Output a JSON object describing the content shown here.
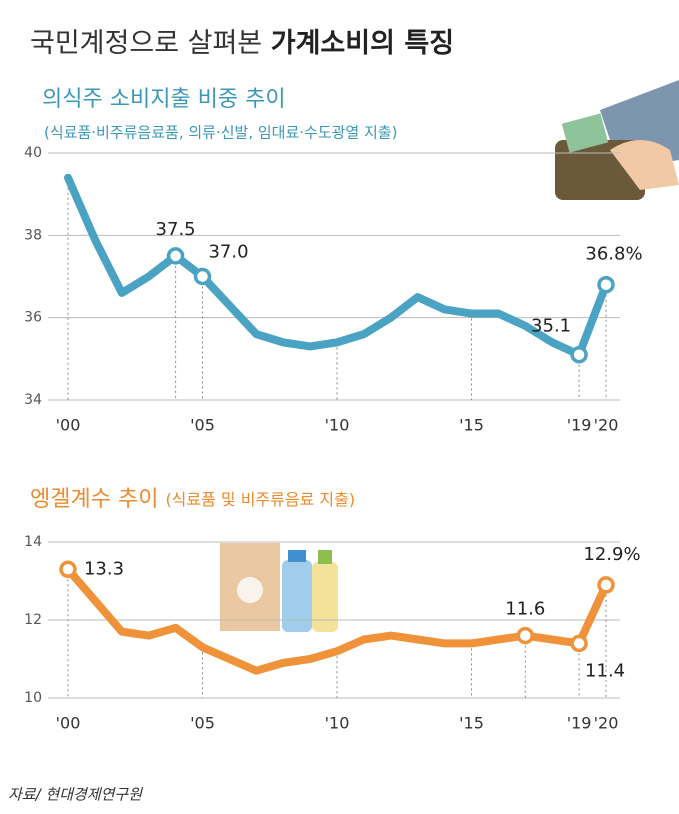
{
  "header": {
    "title_prefix": "국민계정으로 살펴본",
    "title_bold": "가계소비의 특징"
  },
  "chart_data": [
    {
      "type": "line",
      "title": "의식주 소비지출 비중 추이",
      "subtitle": "(식료품·비주류음료품, 의류·신발, 임대료·수도광열 지출)",
      "categories": [
        "'00",
        null,
        null,
        null,
        null,
        "'05",
        null,
        null,
        null,
        null,
        "'10",
        null,
        null,
        null,
        null,
        "'15",
        null,
        null,
        null,
        "'19",
        "'20"
      ],
      "values": [
        39.4,
        37.9,
        36.6,
        37.0,
        37.5,
        37.0,
        36.3,
        35.6,
        35.4,
        35.3,
        35.4,
        35.6,
        36.0,
        36.5,
        36.2,
        36.1,
        36.1,
        35.8,
        35.4,
        35.1,
        36.8
      ],
      "value_labels": [
        null,
        null,
        null,
        null,
        "37.5",
        "37.0",
        null,
        null,
        null,
        null,
        null,
        null,
        null,
        null,
        null,
        null,
        null,
        null,
        null,
        "35.1",
        "36.8%"
      ],
      "color": "#4ba3c3",
      "ylim": [
        34,
        40
      ],
      "yticks": [
        34,
        36,
        38,
        40
      ]
    },
    {
      "type": "line",
      "title": "엥겔계수 추이",
      "subtitle": "(식료품 및 비주류음료 지출)",
      "categories": [
        "'00",
        null,
        null,
        null,
        null,
        "'05",
        null,
        null,
        null,
        null,
        "'10",
        null,
        null,
        null,
        null,
        "'15",
        null,
        null,
        null,
        "'19",
        "'20"
      ],
      "values": [
        13.3,
        12.5,
        11.7,
        11.6,
        11.8,
        11.3,
        11.0,
        10.7,
        10.9,
        11.0,
        11.2,
        11.5,
        11.6,
        11.5,
        11.4,
        11.4,
        11.5,
        11.6,
        11.5,
        11.4,
        12.9
      ],
      "value_labels": [
        "13.3",
        null,
        null,
        null,
        null,
        null,
        null,
        null,
        null,
        null,
        null,
        null,
        null,
        null,
        null,
        null,
        null,
        "11.6",
        null,
        "11.4",
        "12.9%"
      ],
      "color": "#f0923a",
      "ylim": [
        10,
        14
      ],
      "yticks": [
        10,
        12,
        14
      ]
    }
  ],
  "source": "자료/ 현대경제연구원"
}
